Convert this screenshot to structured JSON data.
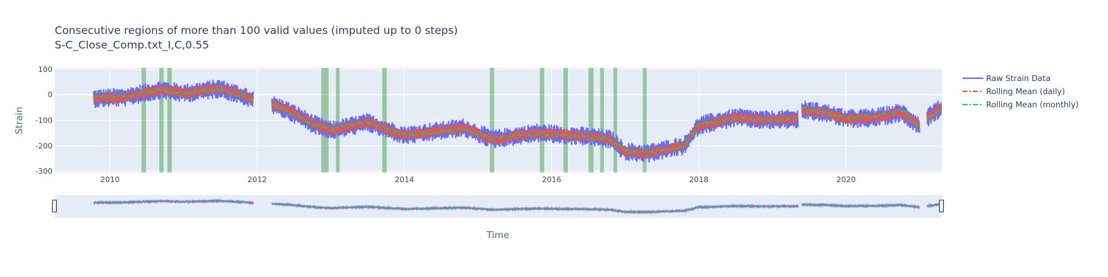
{
  "chart_data": {
    "type": "line",
    "title": "Consecutive regions of more than 100 valid values (imputed up to 0 steps)",
    "subtitle": "S-C_Close_Comp.txt_I,C,0.55",
    "xlabel": "Time",
    "ylabel": "Strain",
    "xlim": [
      2009.25,
      2021.3
    ],
    "ylim": [
      -305,
      105
    ],
    "x_ticks": [
      2010,
      2012,
      2014,
      2016,
      2018,
      2020
    ],
    "y_ticks": [
      100,
      0,
      -100,
      -200,
      -300
    ],
    "grid": true,
    "legend_position": "right",
    "range_slider": true,
    "series": [
      {
        "name": "Raw Strain Data",
        "color": "#636efa",
        "style": "solid",
        "amplitude": 36,
        "segments": [
          {
            "x": [
              2009.78,
              2010.2,
              2010.7,
              2011.0,
              2011.5,
              2011.8
            ],
            "y": [
              -15,
              -10,
              20,
              5,
              25,
              -5
            ]
          },
          {
            "x": [
              2011.78,
              2011.95
            ],
            "y": [
              0,
              -20
            ]
          },
          {
            "x": [
              2012.2,
              2012.4,
              2012.8,
              2013.0,
              2013.5,
              2014.0,
              2014.8,
              2015.2,
              2015.8,
              2016.5,
              2016.8,
              2017.0,
              2017.3,
              2017.8,
              2018.0,
              2018.5,
              2018.9,
              2019.35
            ],
            "y": [
              -40,
              -60,
              -120,
              -140,
              -110,
              -160,
              -130,
              -175,
              -150,
              -165,
              -175,
              -225,
              -230,
              -200,
              -120,
              -90,
              -100,
              -95
            ]
          },
          {
            "x": [
              2019.4,
              2019.7,
              2020.0,
              2020.4,
              2020.75,
              2021.0
            ],
            "y": [
              -60,
              -70,
              -95,
              -90,
              -70,
              -120
            ]
          },
          {
            "x": [
              2021.1,
              2021.3
            ],
            "y": [
              -90,
              -50
            ]
          }
        ]
      },
      {
        "name": "Rolling Mean (daily)",
        "color": "#ef553b",
        "style": "dashdot",
        "amplitude": 20,
        "segments": [
          {
            "x": [
              2009.78,
              2010.2,
              2010.7,
              2011.0,
              2011.5,
              2011.8
            ],
            "y": [
              -15,
              -10,
              20,
              5,
              25,
              -5
            ]
          },
          {
            "x": [
              2011.78,
              2011.95
            ],
            "y": [
              0,
              -20
            ]
          },
          {
            "x": [
              2012.2,
              2012.4,
              2012.8,
              2013.0,
              2013.5,
              2014.0,
              2014.8,
              2015.2,
              2015.8,
              2016.5,
              2016.8,
              2017.0,
              2017.3,
              2017.8,
              2018.0,
              2018.5,
              2018.9,
              2019.35
            ],
            "y": [
              -40,
              -60,
              -120,
              -140,
              -110,
              -160,
              -130,
              -175,
              -150,
              -165,
              -175,
              -225,
              -230,
              -200,
              -120,
              -90,
              -100,
              -95
            ]
          },
          {
            "x": [
              2019.4,
              2019.7,
              2020.0,
              2020.4,
              2020.75,
              2021.0
            ],
            "y": [
              -60,
              -70,
              -95,
              -90,
              -70,
              -120
            ]
          },
          {
            "x": [
              2021.1,
              2021.3
            ],
            "y": [
              -90,
              -50
            ]
          }
        ]
      },
      {
        "name": "Rolling Mean (monthly)",
        "color": "#00cc96",
        "style": "dashdot",
        "amplitude": 0,
        "segments": [
          {
            "x": [
              2009.78,
              2010.2,
              2010.7,
              2011.0,
              2011.5,
              2011.8
            ],
            "y": [
              -10,
              -5,
              18,
              5,
              20,
              -10
            ]
          },
          {
            "x": [
              2011.78,
              2011.95
            ],
            "y": [
              0,
              -25
            ]
          },
          {
            "x": [
              2012.2,
              2012.4,
              2012.8,
              2013.0,
              2013.5,
              2014.0,
              2014.8,
              2015.2,
              2015.8,
              2016.5,
              2016.8,
              2017.0,
              2017.3,
              2017.8,
              2018.0,
              2018.5,
              2018.9,
              2019.35
            ],
            "y": [
              -40,
              -65,
              -120,
              -135,
              -105,
              -160,
              -135,
              -170,
              -155,
              -165,
              -175,
              -220,
              -225,
              -205,
              -115,
              -95,
              -100,
              -95
            ]
          },
          {
            "x": [
              2019.4,
              2019.7,
              2020.0,
              2020.4,
              2020.75,
              2021.0
            ],
            "y": [
              -55,
              -70,
              -90,
              -85,
              -60,
              -125
            ]
          },
          {
            "x": [
              2021.1,
              2021.3
            ],
            "y": [
              -95,
              -55
            ]
          }
        ]
      }
    ],
    "highlight_regions": {
      "color": "#58a65c",
      "ranges": [
        [
          2010.43,
          2010.49
        ],
        [
          2010.67,
          2010.73
        ],
        [
          2010.78,
          2010.84
        ],
        [
          2012.87,
          2012.97
        ],
        [
          2013.07,
          2013.12
        ],
        [
          2013.7,
          2013.76
        ],
        [
          2015.16,
          2015.22
        ],
        [
          2015.84,
          2015.9
        ],
        [
          2016.16,
          2016.22
        ],
        [
          2016.5,
          2016.57
        ],
        [
          2016.66,
          2016.71
        ],
        [
          2016.84,
          2016.89
        ],
        [
          2017.24,
          2017.29
        ]
      ]
    }
  }
}
